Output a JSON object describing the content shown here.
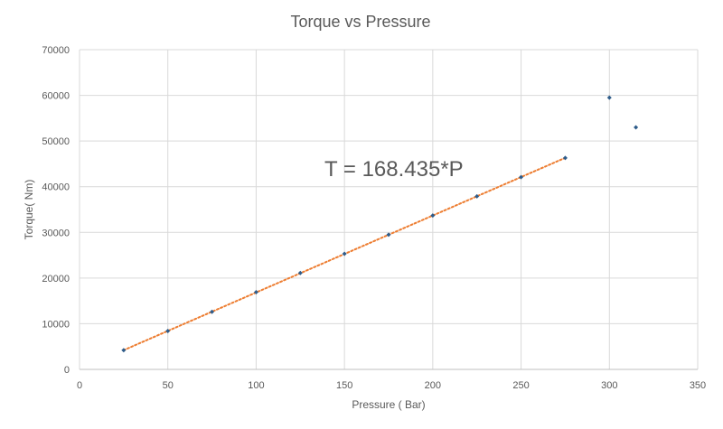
{
  "chart_data": {
    "type": "scatter",
    "title": "Torque vs Pressure",
    "xlabel": "Pressure ( Bar)",
    "ylabel": "Torque( Nm)",
    "xlim": [
      0,
      350
    ],
    "ylim": [
      0,
      70000
    ],
    "x_ticks": [
      0,
      50,
      100,
      150,
      200,
      250,
      300,
      350
    ],
    "y_ticks": [
      0,
      10000,
      20000,
      30000,
      40000,
      50000,
      60000,
      70000
    ],
    "x_tick_labels": [
      "0",
      "50",
      "100",
      "150",
      "200",
      "250",
      "300",
      "350"
    ],
    "y_tick_labels": [
      "0",
      "10000",
      "20000",
      "30000",
      "40000",
      "50000",
      "60000",
      "70000"
    ],
    "grid": true,
    "series": [
      {
        "color": "#2e5c8a",
        "points": [
          {
            "x": 25,
            "y": 4200
          },
          {
            "x": 50,
            "y": 8400
          },
          {
            "x": 75,
            "y": 12600
          },
          {
            "x": 100,
            "y": 16900
          },
          {
            "x": 125,
            "y": 21100
          },
          {
            "x": 150,
            "y": 25300
          },
          {
            "x": 175,
            "y": 29500
          },
          {
            "x": 200,
            "y": 33700
          },
          {
            "x": 225,
            "y": 37900
          },
          {
            "x": 250,
            "y": 42100
          },
          {
            "x": 275,
            "y": 46300
          },
          {
            "x": 300,
            "y": 59500
          },
          {
            "x": 315,
            "y": 53000
          }
        ]
      }
    ],
    "trendline": {
      "style": "dotted",
      "color": "#ed7d31",
      "slope": 168.435,
      "x_range": [
        25,
        275
      ]
    },
    "annotation": "T = 168.435*P"
  }
}
